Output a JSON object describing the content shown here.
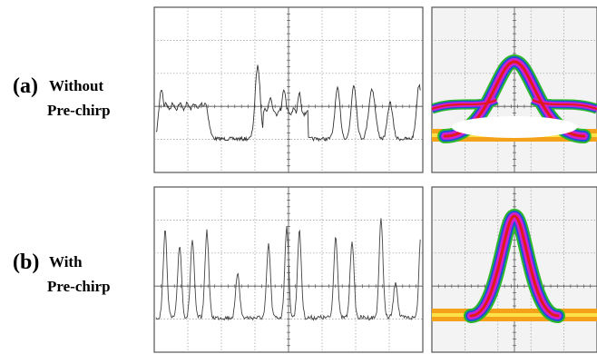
{
  "panels": [
    {
      "label": "(a)",
      "line1": "Without",
      "line2": "Pre-chirp"
    },
    {
      "label": "(b)",
      "line1": "With",
      "line2": "Pre-chirp"
    }
  ]
}
